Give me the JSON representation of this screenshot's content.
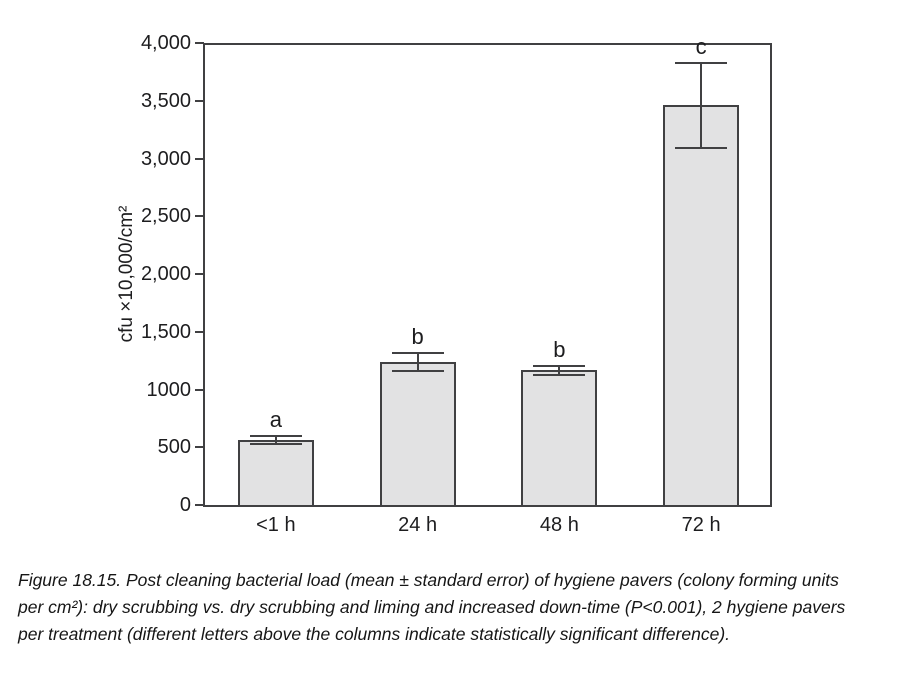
{
  "chart_data": {
    "type": "bar",
    "title": "",
    "xlabel": "",
    "ylabel": "cfu ×10,000/cm²",
    "ylim": [
      0,
      4000
    ],
    "grid": false,
    "legend": "none",
    "ytick_values": [
      0,
      500,
      1000,
      1500,
      2000,
      2500,
      3000,
      3500,
      4000
    ],
    "ytick_labels": [
      "0",
      "500",
      "1000",
      "1,500",
      "2,000",
      "2,500",
      "3,000",
      "3,500",
      "4,000"
    ],
    "categories": [
      "<1 h",
      "24 h",
      "48 h",
      "72 h"
    ],
    "values": [
      565,
      1240,
      1165,
      3460
    ],
    "errors": [
      35,
      80,
      40,
      370
    ],
    "sig_letters": [
      "a",
      "b",
      "b",
      "c"
    ]
  },
  "caption": {
    "lines": [
      "Figure 18.15. Post cleaning bacterial load (mean ± standard error) of hygiene pavers (colony forming units",
      "per cm²): dry scrubbing vs. dry scrubbing and liming and increased down-time (P<0.001), 2 hygiene pavers",
      "per treatment (different letters above the columns indicate statistically significant difference)."
    ]
  },
  "colors": {
    "bar_fill": "#e2e2e3",
    "stroke": "#404042",
    "text": "#1d1d1f"
  }
}
